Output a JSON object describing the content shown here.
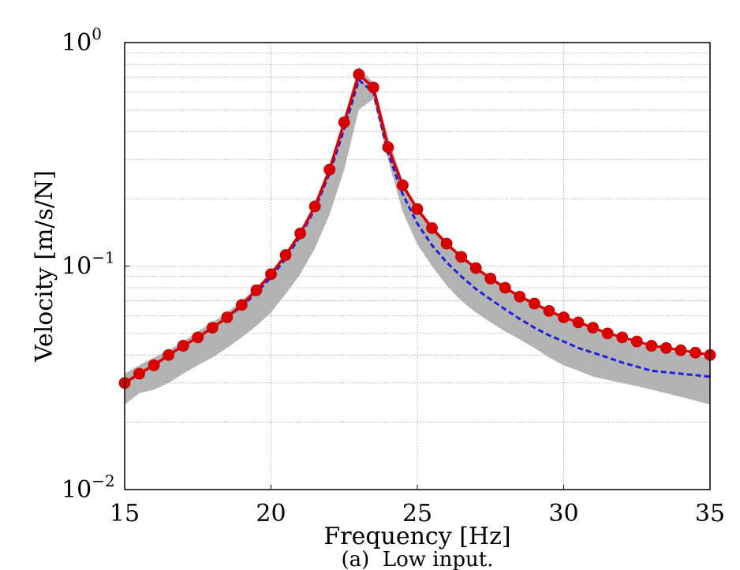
{
  "chart_data": {
    "type": "line",
    "title": "",
    "caption": "(a)  Low input.",
    "xlabel": "Frequency [Hz]",
    "ylabel": "Velocity [m/s/N]",
    "xlim": [
      15,
      35
    ],
    "ylim": [
      0.01,
      1
    ],
    "yscale": "log",
    "grid": true,
    "x_ticks": [
      {
        "value": 15,
        "label": "15"
      },
      {
        "value": 20,
        "label": "20"
      },
      {
        "value": 25,
        "label": "25"
      },
      {
        "value": 30,
        "label": "30"
      },
      {
        "value": 35,
        "label": "35"
      }
    ],
    "y_ticks": [
      {
        "value": 0.01,
        "base": "10",
        "exp": "−2"
      },
      {
        "value": 0.1,
        "base": "10",
        "exp": "−1"
      },
      {
        "value": 1,
        "base": "10",
        "exp": "0"
      }
    ],
    "band": {
      "color": "#b3b3b3",
      "x": [
        15,
        15.5,
        16,
        16.5,
        17,
        17.5,
        18,
        18.5,
        19,
        19.5,
        20,
        20.5,
        21,
        21.5,
        22,
        22.5,
        23,
        23.5,
        24,
        24.5,
        25,
        25.5,
        26,
        26.5,
        27,
        27.5,
        28,
        28.5,
        29,
        29.5,
        30,
        30.5,
        31,
        31.5,
        32,
        32.5,
        33,
        33.5,
        34,
        34.5,
        35
      ],
      "upper": [
        0.033,
        0.036,
        0.039,
        0.042,
        0.046,
        0.051,
        0.056,
        0.062,
        0.07,
        0.08,
        0.094,
        0.113,
        0.14,
        0.19,
        0.28,
        0.46,
        0.78,
        0.66,
        0.38,
        0.24,
        0.18,
        0.15,
        0.127,
        0.11,
        0.098,
        0.088,
        0.08,
        0.073,
        0.067,
        0.062,
        0.058,
        0.055,
        0.052,
        0.049,
        0.047,
        0.045,
        0.043,
        0.042,
        0.041,
        0.04,
        0.039
      ],
      "lower": [
        0.024,
        0.027,
        0.028,
        0.03,
        0.033,
        0.036,
        0.039,
        0.043,
        0.048,
        0.054,
        0.062,
        0.075,
        0.092,
        0.12,
        0.17,
        0.27,
        0.5,
        0.56,
        0.3,
        0.175,
        0.125,
        0.1,
        0.082,
        0.07,
        0.062,
        0.056,
        0.051,
        0.047,
        0.043,
        0.039,
        0.036,
        0.034,
        0.032,
        0.031,
        0.03,
        0.029,
        0.028,
        0.027,
        0.026,
        0.025,
        0.024
      ]
    },
    "series": [
      {
        "style": "dashed",
        "color": "#1f1fe0",
        "x": [
          15,
          15.5,
          16,
          16.5,
          17,
          17.5,
          18,
          18.5,
          19,
          19.5,
          20,
          20.5,
          21,
          21.5,
          22,
          22.5,
          23,
          23.5,
          24,
          24.5,
          25,
          25.5,
          26,
          26.5,
          27,
          27.5,
          28,
          28.5,
          29,
          29.5,
          30,
          30.5,
          31,
          31.5,
          32,
          32.5,
          33,
          33.5,
          34,
          34.5,
          35
        ],
        "values": [
          0.03,
          0.033,
          0.036,
          0.04,
          0.044,
          0.048,
          0.053,
          0.059,
          0.066,
          0.076,
          0.089,
          0.108,
          0.136,
          0.18,
          0.26,
          0.41,
          0.68,
          0.6,
          0.32,
          0.21,
          0.155,
          0.124,
          0.104,
          0.09,
          0.079,
          0.071,
          0.064,
          0.058,
          0.053,
          0.049,
          0.046,
          0.043,
          0.041,
          0.039,
          0.037,
          0.0355,
          0.034,
          0.0335,
          0.033,
          0.0325,
          0.032
        ]
      },
      {
        "style": "solid-markers",
        "color": "#d90000",
        "x": [
          15,
          15.5,
          16,
          16.5,
          17,
          17.5,
          18,
          18.5,
          19,
          19.5,
          20,
          20.5,
          21,
          21.5,
          22,
          22.5,
          23,
          23.5,
          24,
          24.5,
          25,
          25.5,
          26,
          26.5,
          27,
          27.5,
          28,
          28.5,
          29,
          29.5,
          30,
          30.5,
          31,
          31.5,
          32,
          32.5,
          33,
          33.5,
          34,
          34.5,
          35
        ],
        "values": [
          0.03,
          0.033,
          0.036,
          0.04,
          0.044,
          0.048,
          0.053,
          0.059,
          0.067,
          0.078,
          0.092,
          0.112,
          0.14,
          0.185,
          0.27,
          0.44,
          0.72,
          0.63,
          0.34,
          0.23,
          0.18,
          0.148,
          0.126,
          0.11,
          0.098,
          0.088,
          0.08,
          0.073,
          0.068,
          0.063,
          0.059,
          0.056,
          0.053,
          0.05,
          0.048,
          0.046,
          0.044,
          0.043,
          0.042,
          0.041,
          0.04
        ]
      }
    ]
  }
}
